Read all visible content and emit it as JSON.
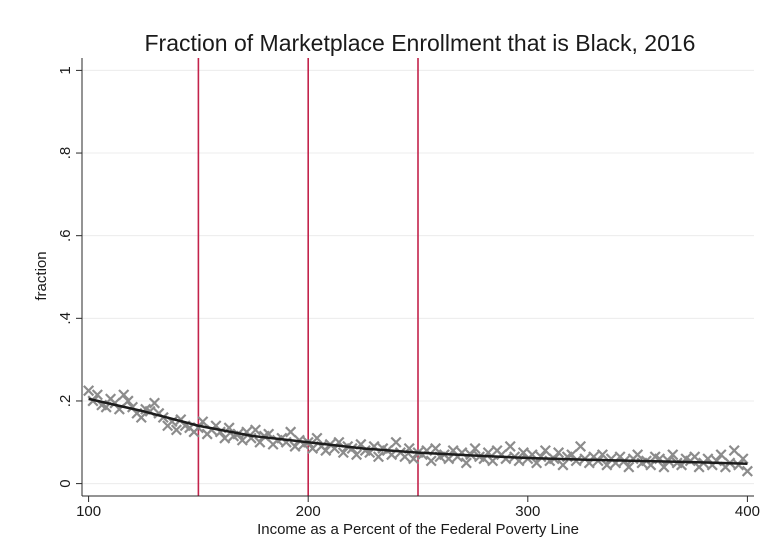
{
  "chart_data": {
    "type": "scatter",
    "title": "Fraction of Marketplace Enrollment that is Black, 2016",
    "xlabel": "Income as a Percent of the Federal Poverty Line",
    "ylabel": "fraction",
    "xlim": [
      97,
      403
    ],
    "ylim": [
      -0.03,
      1.03
    ],
    "x_ticks": [
      100,
      200,
      300,
      400
    ],
    "x_tick_labels": [
      "100",
      "200",
      "300",
      "400"
    ],
    "y_ticks": [
      0,
      0.2,
      0.4,
      0.6,
      0.8,
      1
    ],
    "y_tick_labels": [
      "0",
      ".2",
      ".4",
      ".6",
      ".8",
      "1"
    ],
    "grid": true,
    "legend": "none",
    "reference_lines_x": [
      150,
      200,
      250
    ],
    "colors": {
      "points": "#8c8c8c",
      "fit_line": "#1c1c1c",
      "reference_lines": "#c3234b",
      "grid": "#ececec",
      "axis": "#2a2a2a"
    },
    "series": [
      {
        "marker": "x",
        "x": [
          100,
          102,
          104,
          106,
          108,
          110,
          112,
          114,
          116,
          118,
          120,
          122,
          124,
          126,
          128,
          130,
          132,
          134,
          136,
          138,
          140,
          142,
          144,
          146,
          148,
          150,
          152,
          154,
          156,
          158,
          160,
          162,
          164,
          166,
          168,
          170,
          172,
          174,
          176,
          178,
          180,
          182,
          184,
          186,
          188,
          190,
          192,
          194,
          196,
          198,
          200,
          202,
          204,
          206,
          208,
          210,
          212,
          214,
          216,
          218,
          220,
          222,
          224,
          226,
          228,
          230,
          232,
          234,
          236,
          238,
          240,
          242,
          244,
          246,
          248,
          250,
          252,
          254,
          256,
          258,
          260,
          262,
          264,
          266,
          268,
          270,
          272,
          274,
          276,
          278,
          280,
          282,
          284,
          286,
          288,
          290,
          292,
          294,
          296,
          298,
          300,
          302,
          304,
          306,
          308,
          310,
          312,
          314,
          316,
          318,
          320,
          322,
          324,
          326,
          328,
          330,
          332,
          334,
          336,
          338,
          340,
          342,
          344,
          346,
          348,
          350,
          352,
          354,
          356,
          358,
          360,
          362,
          364,
          366,
          368,
          370,
          372,
          374,
          376,
          378,
          380,
          382,
          384,
          386,
          388,
          390,
          392,
          394,
          396,
          398,
          400
        ],
        "y": [
          0.225,
          0.2,
          0.215,
          0.19,
          0.185,
          0.205,
          0.195,
          0.18,
          0.215,
          0.2,
          0.185,
          0.17,
          0.16,
          0.18,
          0.175,
          0.195,
          0.17,
          0.16,
          0.14,
          0.15,
          0.13,
          0.155,
          0.14,
          0.135,
          0.125,
          0.135,
          0.15,
          0.12,
          0.13,
          0.14,
          0.125,
          0.11,
          0.135,
          0.115,
          0.12,
          0.105,
          0.125,
          0.11,
          0.13,
          0.1,
          0.115,
          0.12,
          0.095,
          0.105,
          0.11,
          0.1,
          0.125,
          0.09,
          0.105,
          0.095,
          0.1,
          0.085,
          0.11,
          0.09,
          0.08,
          0.095,
          0.085,
          0.1,
          0.075,
          0.09,
          0.085,
          0.07,
          0.095,
          0.08,
          0.075,
          0.09,
          0.065,
          0.085,
          0.08,
          0.07,
          0.1,
          0.075,
          0.065,
          0.085,
          0.06,
          0.075,
          0.07,
          0.08,
          0.055,
          0.085,
          0.065,
          0.07,
          0.06,
          0.08,
          0.065,
          0.075,
          0.05,
          0.07,
          0.085,
          0.065,
          0.06,
          0.075,
          0.055,
          0.08,
          0.07,
          0.06,
          0.09,
          0.065,
          0.055,
          0.075,
          0.06,
          0.07,
          0.05,
          0.065,
          0.08,
          0.055,
          0.06,
          0.075,
          0.045,
          0.065,
          0.07,
          0.055,
          0.09,
          0.06,
          0.05,
          0.065,
          0.055,
          0.07,
          0.045,
          0.06,
          0.05,
          0.065,
          0.055,
          0.04,
          0.06,
          0.07,
          0.05,
          0.055,
          0.045,
          0.065,
          0.06,
          0.04,
          0.055,
          0.07,
          0.05,
          0.045,
          0.06,
          0.055,
          0.065,
          0.04,
          0.05,
          0.06,
          0.045,
          0.055,
          0.07,
          0.04,
          0.05,
          0.08,
          0.045,
          0.06,
          0.03
        ]
      },
      {
        "type": "line",
        "x": [
          100,
          125,
          150,
          175,
          200,
          225,
          250,
          275,
          300,
          325,
          350,
          375,
          400
        ],
        "y": [
          0.205,
          0.175,
          0.14,
          0.115,
          0.1,
          0.085,
          0.075,
          0.068,
          0.062,
          0.058,
          0.055,
          0.052,
          0.048
        ]
      }
    ]
  }
}
